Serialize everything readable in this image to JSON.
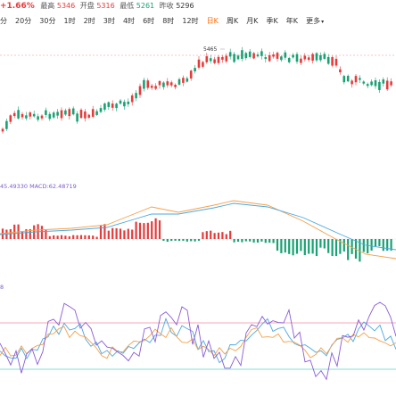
{
  "quote": {
    "change_pct": "+1.66%",
    "high_label": "最高",
    "high": "5346",
    "open_label": "开盘",
    "open": "5316",
    "low_label": "最低",
    "low": "5261",
    "prev_close_label": "昨收",
    "prev_close": "5296"
  },
  "tabs": [
    "分",
    "20分",
    "30分",
    "1时",
    "2时",
    "3时",
    "4时",
    "6时",
    "8时",
    "12时",
    "日K",
    "周K",
    "月K",
    "季K",
    "年K",
    "更多"
  ],
  "active_tab": "日K",
  "price_annotation": "5465",
  "macd_label": "45.49330 MACD:62.48719",
  "kdj_label": "8",
  "colors": {
    "up": "#e63b3b",
    "down": "#19a174",
    "accent": "#ff6a00",
    "line_orange": "#f5a04a",
    "line_blue": "#4aa8e0",
    "line_purple": "#8a5cd6",
    "ref_red": "#f08aa0",
    "ref_cyan": "#5cd0c0"
  }
}
